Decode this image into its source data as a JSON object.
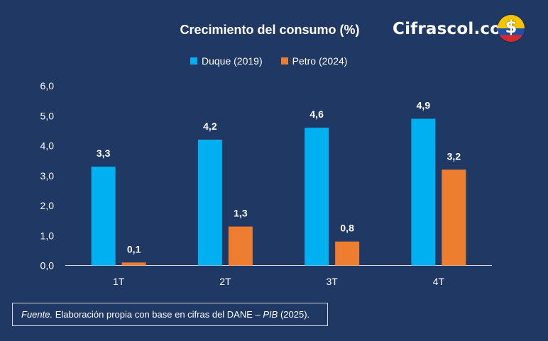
{
  "header": {
    "brand": "Cifrascol.com",
    "coin_symbol": "$"
  },
  "source": {
    "prefix": "Fuente.",
    "text_a": " Elaboración propia con base en cifras del DANE – ",
    "emph": "PIB",
    "text_b": " (2025)."
  },
  "colors": {
    "background": "#1f3864",
    "series_1": "#00b0f0",
    "series_2": "#ed7d31"
  },
  "chart_data": {
    "type": "bar",
    "title": "Crecimiento del consumo (%)",
    "xlabel": "",
    "ylabel": "",
    "categories": [
      "1T",
      "2T",
      "3T",
      "4T"
    ],
    "series": [
      {
        "name": "Duque (2019)",
        "values": [
          3.3,
          4.2,
          4.6,
          4.9
        ],
        "labels": [
          "3,3",
          "4,2",
          "4,6",
          "4,9"
        ]
      },
      {
        "name": "Petro (2024)",
        "values": [
          0.1,
          1.3,
          0.8,
          3.2
        ],
        "labels": [
          "0,1",
          "1,3",
          "0,8",
          "3,2"
        ]
      }
    ],
    "ylim": [
      0,
      6
    ],
    "yticks": [
      "0,0",
      "1,0",
      "2,0",
      "3,0",
      "4,0",
      "5,0",
      "6,0"
    ],
    "grid": false,
    "legend": "top-center"
  }
}
